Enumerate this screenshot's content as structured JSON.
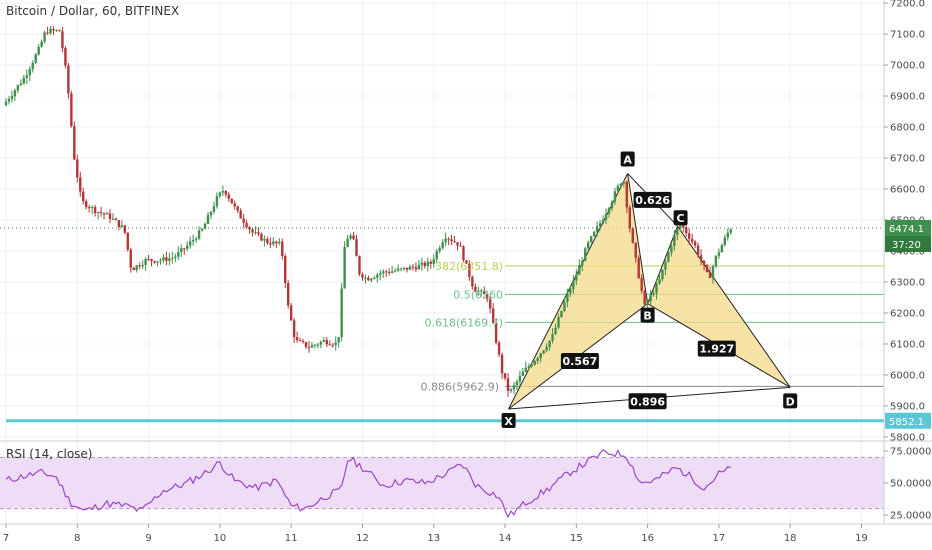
{
  "header": {
    "title": "Bitcoin / Dollar, 60, BITFINEX"
  },
  "colors": {
    "up": "#3f8f4d",
    "down": "#b33636",
    "pattern_fill": "#f5d98a",
    "pattern_stroke": "#222222",
    "fib_green": "#6bbf8a",
    "fib_lime": "#b8cf5c",
    "fib_gray": "#8a8a8a",
    "support": "#5bc6d8",
    "rsi_line": "#9b47c4",
    "rsi_band": "#efdcf7"
  },
  "chart_data": [
    {
      "type": "candlestick",
      "title": "Bitcoin / Dollar, 60, BITFINEX",
      "x_ticks": [
        "7",
        "8",
        "9",
        "10",
        "11",
        "12",
        "13",
        "14",
        "15",
        "16",
        "17",
        "18",
        "19"
      ],
      "x_range": [
        7,
        19.4
      ],
      "y_ticks": [
        "7200.0",
        "7100.0",
        "7000.0",
        "6900.0",
        "6800.0",
        "6700.0",
        "6600.0",
        "6500.0",
        "6400.0",
        "6300.0",
        "6200.0",
        "6100.0",
        "6000.0",
        "5900.0",
        "5800.0"
      ],
      "y_range": [
        5790,
        7210
      ],
      "price_path": [
        [
          7.0,
          6870
        ],
        [
          7.3,
          6960
        ],
        [
          7.5,
          7050
        ],
        [
          7.6,
          7110
        ],
        [
          7.8,
          7110
        ],
        [
          7.9,
          6950
        ],
        [
          8.0,
          6700
        ],
        [
          8.1,
          6560
        ],
        [
          8.3,
          6530
        ],
        [
          8.5,
          6510
        ],
        [
          8.7,
          6470
        ],
        [
          8.8,
          6340
        ],
        [
          9.0,
          6370
        ],
        [
          9.2,
          6370
        ],
        [
          9.4,
          6380
        ],
        [
          9.6,
          6420
        ],
        [
          9.8,
          6470
        ],
        [
          10.0,
          6570
        ],
        [
          10.1,
          6600
        ],
        [
          10.3,
          6520
        ],
        [
          10.5,
          6460
        ],
        [
          10.7,
          6430
        ],
        [
          10.9,
          6420
        ],
        [
          11.0,
          6220
        ],
        [
          11.1,
          6110
        ],
        [
          11.3,
          6090
        ],
        [
          11.5,
          6110
        ],
        [
          11.7,
          6100
        ],
        [
          11.8,
          6440
        ],
        [
          11.9,
          6450
        ],
        [
          12.0,
          6330
        ],
        [
          12.1,
          6310
        ],
        [
          12.3,
          6330
        ],
        [
          12.6,
          6340
        ],
        [
          12.8,
          6350
        ],
        [
          13.0,
          6360
        ],
        [
          13.2,
          6450
        ],
        [
          13.4,
          6420
        ],
        [
          13.6,
          6280
        ],
        [
          13.8,
          6250
        ],
        [
          14.0,
          6010
        ],
        [
          14.1,
          5940
        ],
        [
          14.3,
          6010
        ],
        [
          14.5,
          6060
        ],
        [
          14.7,
          6120
        ],
        [
          14.9,
          6250
        ],
        [
          15.0,
          6300
        ],
        [
          15.2,
          6420
        ],
        [
          15.4,
          6500
        ],
        [
          15.7,
          6640
        ],
        [
          15.8,
          6460
        ],
        [
          16.0,
          6220
        ],
        [
          16.2,
          6300
        ],
        [
          16.4,
          6440
        ],
        [
          16.5,
          6490
        ],
        [
          16.7,
          6420
        ],
        [
          16.9,
          6310
        ],
        [
          17.0,
          6380
        ],
        [
          17.2,
          6474
        ]
      ],
      "horizontal_lines": [
        {
          "name": "fib-0.382",
          "value": 6351.8,
          "color": "fib_lime",
          "x_start": 14.0
        },
        {
          "name": "fib-0.5",
          "value": 6260,
          "color": "fib_green",
          "x_start": 14.0
        },
        {
          "name": "fib-0.618",
          "value": 6169.7,
          "color": "fib_green",
          "x_start": 14.0
        },
        {
          "name": "fib-0.886",
          "value": 5962.9,
          "color": "fib_gray",
          "x_start": 14.0
        },
        {
          "name": "support",
          "value": 5852.1,
          "color": "support",
          "x_start": 7.0
        }
      ],
      "fib_labels": [
        {
          "name": "fib-label-0382",
          "text": "382(6351.8)",
          "value": 6351.8,
          "color": "fib_lime"
        },
        {
          "name": "fib-label-05",
          "text": "0.5(6260",
          "value": 6260,
          "color": "fib_green"
        },
        {
          "name": "fib-label-0618",
          "text": "0.618(6169.7)",
          "value": 6169.7,
          "color": "fib_green"
        },
        {
          "name": "fib-label-0886",
          "text": "0.886(5962.9)",
          "value": 5962.9,
          "color": "fib_gray"
        }
      ],
      "harmonic_pattern": {
        "points": [
          {
            "label": "X",
            "x": 14.05,
            "y": 5890
          },
          {
            "label": "A",
            "x": 15.72,
            "y": 6650
          },
          {
            "label": "B",
            "x": 16.0,
            "y": 6230
          },
          {
            "label": "C",
            "x": 16.42,
            "y": 6480
          },
          {
            "label": "D",
            "x": 18.0,
            "y": 5960
          }
        ],
        "ratios": [
          {
            "text": "0.567",
            "x": 15.05,
            "y": 6045
          },
          {
            "text": "0.626",
            "x": 16.07,
            "y": 6565
          },
          {
            "text": "1.927",
            "x": 16.97,
            "y": 6085
          },
          {
            "text": "0.896",
            "x": 16.0,
            "y": 5915
          }
        ]
      },
      "last_price": {
        "value": 6474.1,
        "text": "6474.1",
        "timer": "37:20"
      },
      "support_badge": {
        "value": 5852.1,
        "text": "5852.1"
      }
    },
    {
      "type": "line",
      "title": "RSI (14, close)",
      "y_ticks": [
        "75.0000",
        "50.0000",
        "25.0000"
      ],
      "y_range": [
        18,
        82
      ],
      "band": [
        30,
        70
      ],
      "rsi_path": [
        [
          7.0,
          52
        ],
        [
          7.3,
          56
        ],
        [
          7.5,
          58
        ],
        [
          7.7,
          55
        ],
        [
          7.9,
          35
        ],
        [
          8.1,
          28
        ],
        [
          8.4,
          34
        ],
        [
          8.7,
          32
        ],
        [
          8.9,
          28
        ],
        [
          9.2,
          44
        ],
        [
          9.5,
          49
        ],
        [
          9.8,
          58
        ],
        [
          10.0,
          66
        ],
        [
          10.2,
          52
        ],
        [
          10.5,
          46
        ],
        [
          10.8,
          52
        ],
        [
          11.0,
          32
        ],
        [
          11.2,
          30
        ],
        [
          11.5,
          40
        ],
        [
          11.7,
          44
        ],
        [
          11.8,
          70
        ],
        [
          12.0,
          62
        ],
        [
          12.3,
          48
        ],
        [
          12.6,
          52
        ],
        [
          12.9,
          50
        ],
        [
          13.2,
          58
        ],
        [
          13.4,
          65
        ],
        [
          13.6,
          48
        ],
        [
          13.9,
          40
        ],
        [
          14.05,
          24
        ],
        [
          14.3,
          35
        ],
        [
          14.6,
          45
        ],
        [
          14.9,
          58
        ],
        [
          15.2,
          68
        ],
        [
          15.4,
          74
        ],
        [
          15.7,
          72
        ],
        [
          15.9,
          50
        ],
        [
          16.1,
          52
        ],
        [
          16.4,
          62
        ],
        [
          16.6,
          55
        ],
        [
          16.8,
          46
        ],
        [
          17.0,
          57
        ],
        [
          17.2,
          62
        ]
      ]
    }
  ]
}
